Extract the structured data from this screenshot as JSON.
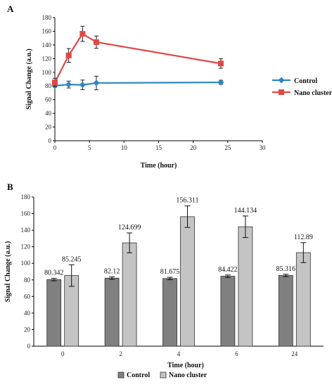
{
  "chart_data": [
    {
      "panel": "A",
      "type": "line",
      "xlabel": "Time (hour)",
      "ylabel": "Signal Change (a.u.)",
      "xlim": [
        0,
        30
      ],
      "ylim": [
        0,
        180
      ],
      "xticks": [
        0,
        5,
        10,
        15,
        20,
        25,
        30
      ],
      "yticks": [
        0,
        20,
        40,
        60,
        80,
        100,
        120,
        140,
        160,
        180
      ],
      "legend_position": "right",
      "series": [
        {
          "name": "Control",
          "color": "#2e86c1",
          "marker": "diamond",
          "points": [
            {
              "x": 0,
              "y": 80.342,
              "err": 2
            },
            {
              "x": 2,
              "y": 82.12,
              "err": 5
            },
            {
              "x": 4,
              "y": 81.675,
              "err": 7
            },
            {
              "x": 6,
              "y": 84.422,
              "err": 10
            },
            {
              "x": 24,
              "y": 85.316,
              "err": 3
            }
          ]
        },
        {
          "name": "Nano cluster",
          "color": "#e04848",
          "marker": "square",
          "points": [
            {
              "x": 0,
              "y": 85.245,
              "err": 6
            },
            {
              "x": 2,
              "y": 124.699,
              "err": 10
            },
            {
              "x": 4,
              "y": 156.311,
              "err": 11
            },
            {
              "x": 6,
              "y": 144.134,
              "err": 9
            },
            {
              "x": 24,
              "y": 112.89,
              "err": 7
            }
          ]
        }
      ]
    },
    {
      "panel": "B",
      "type": "bar",
      "xlabel": "Time (hour)",
      "ylabel": "Signal Change (a.u.)",
      "ylim": [
        0,
        180
      ],
      "yticks": [
        0,
        20,
        40,
        60,
        80,
        100,
        120,
        140,
        160,
        180
      ],
      "categories": [
        "0",
        "2",
        "4",
        "6",
        "24"
      ],
      "legend_position": "bottom",
      "series": [
        {
          "name": "Control",
          "color": "#808080",
          "values": [
            80.342,
            82.12,
            81.675,
            84.422,
            85.316
          ],
          "errors": [
            1.5,
            1.5,
            1.5,
            1.5,
            1.5
          ],
          "labels": [
            "80.342",
            "82.12",
            "81.675",
            "84.422",
            "85.316"
          ]
        },
        {
          "name": "Nano cluster",
          "color": "#c4c4c4",
          "values": [
            85.245,
            124.699,
            156.311,
            144.134,
            112.89
          ],
          "errors": [
            13,
            12,
            13,
            13,
            12
          ],
          "labels": [
            "85.245",
            "124.699",
            "156.311",
            "144.134",
            "112.89"
          ]
        }
      ]
    }
  ]
}
